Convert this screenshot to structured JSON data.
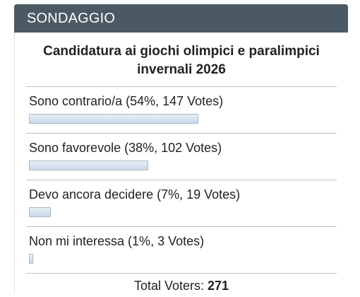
{
  "widget": {
    "title": "SONDAGGIO"
  },
  "poll": {
    "question": "Candidatura ai giochi olimpici e paralimpici invernali 2026",
    "max_bar_percent": 54,
    "answers": [
      {
        "label": "Sono contrario/a (54%, 147 Votes)",
        "percent": 54,
        "votes": 147
      },
      {
        "label": "Sono favorevole (38%, 102 Votes)",
        "percent": 38,
        "votes": 102
      },
      {
        "label": "Devo ancora decidere (7%, 19 Votes)",
        "percent": 7,
        "votes": 19
      },
      {
        "label": "Non mi interessa (1%, 3 Votes)",
        "percent": 1,
        "votes": 3
      }
    ],
    "total_label": "Total Voters:",
    "total_value": "271"
  },
  "colors": {
    "header_bg": "#4a5963",
    "bar_fill": "#c9d8ea",
    "divider": "#bdbdbd"
  }
}
